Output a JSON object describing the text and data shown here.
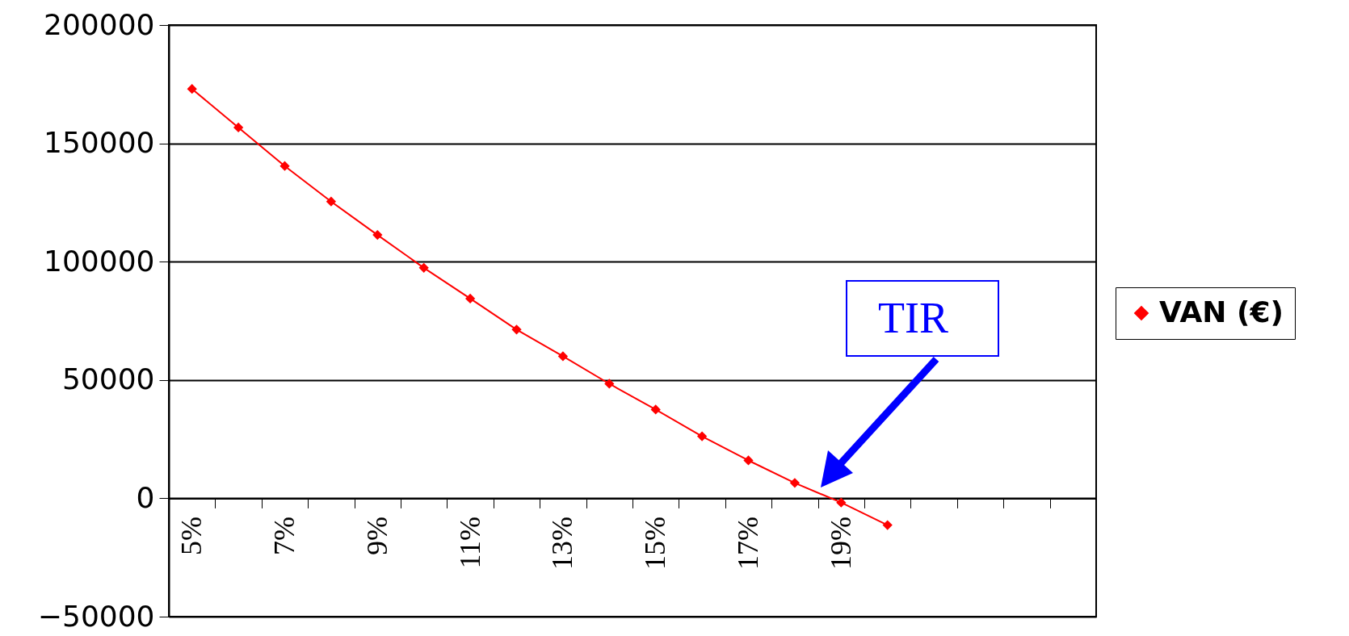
{
  "chart_data": {
    "type": "line",
    "categories": [
      "5%",
      null,
      "7%",
      null,
      "9%",
      null,
      "11%",
      null,
      "13%",
      null,
      "15%",
      null,
      "17%",
      null,
      "19%",
      null,
      null,
      null,
      null,
      null
    ],
    "series": [
      {
        "name": "VAN (€)",
        "color": "#ff0000",
        "values": [
          173000,
          156700,
          140400,
          125400,
          111300,
          97400,
          84400,
          71300,
          60000,
          48400,
          37500,
          26200,
          16000,
          6500,
          -1800,
          -11300,
          null,
          null,
          null,
          null
        ]
      }
    ],
    "ylim": [
      -50000,
      200000
    ],
    "yticks": [
      -50000,
      0,
      50000,
      100000,
      150000,
      200000
    ],
    "grid": "y",
    "legend": "right",
    "marker": "diamond",
    "line_style": "solid",
    "annotations": [
      "TIR"
    ]
  }
}
